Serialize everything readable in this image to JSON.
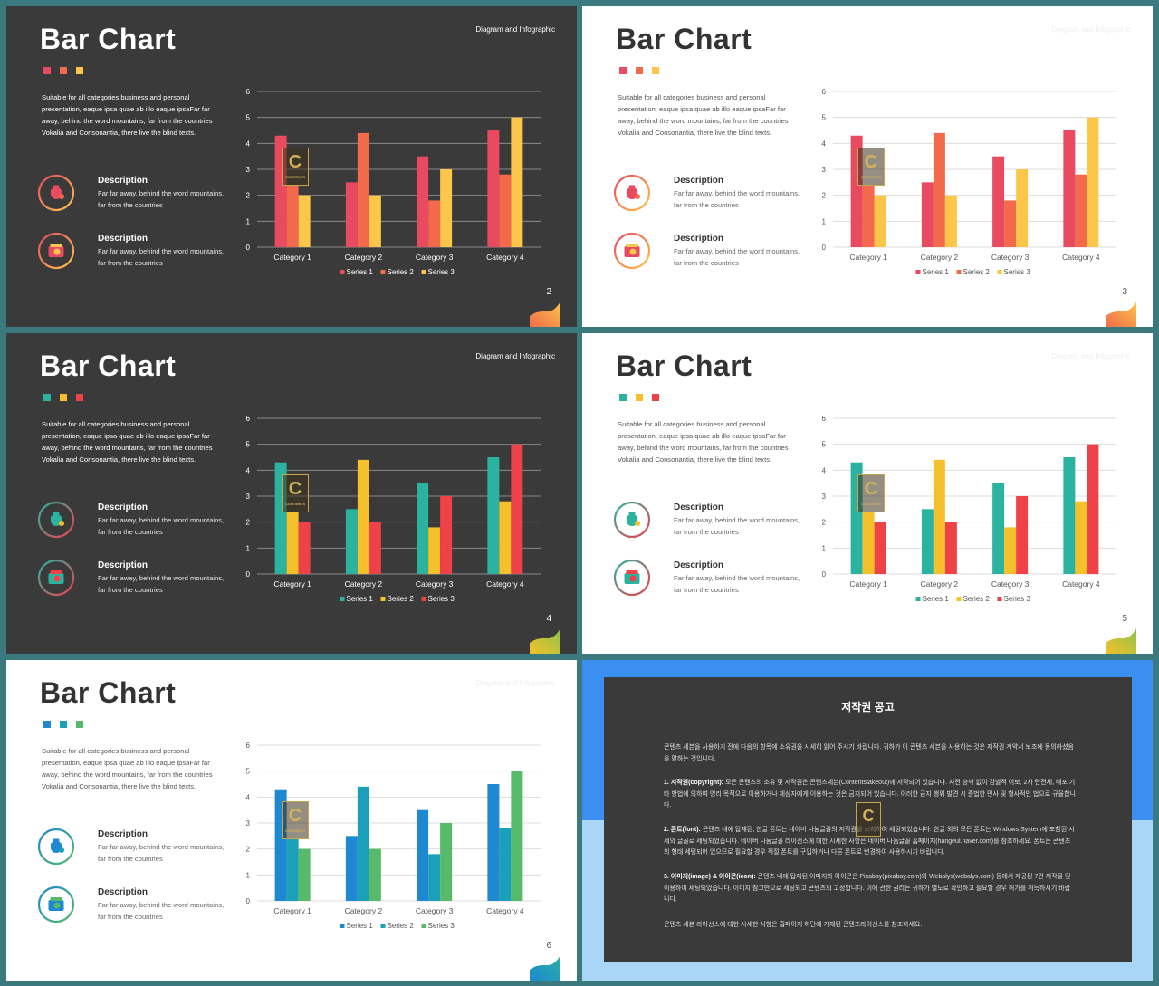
{
  "slides": [
    {
      "theme": "dark",
      "title": "Bar Chart",
      "corner_label": "Diagram and Infographic",
      "body_text": "Suitable for all categories business and personal presentation, eaque ipsa quae ab illo eaque ipsaFar far away, behind the word mountains, far from the countries Vokalia and Consonantia, there live the blind texts.",
      "descriptions": [
        {
          "title": "Description",
          "text": "Far far away, behind the word mountains, far from the countries",
          "icon": "money-bag-icon"
        },
        {
          "title": "Description",
          "text": "Far far away, behind the word mountains, far from the countries",
          "icon": "wallet-icon"
        }
      ],
      "dot_colors": [
        "#e84a5f",
        "#f26a4b",
        "#fcc64a"
      ],
      "series_colors": [
        "#e84a5f",
        "#f26a4b",
        "#fcc64a"
      ],
      "page_number": "2",
      "wave_colors": [
        "#f26a4b",
        "#fcc64a"
      ],
      "stamp_letter": "C",
      "stamp_text": "CONTENTS"
    },
    {
      "theme": "light",
      "title": "Bar Chart",
      "corner_label": "Diagram and Infographic",
      "body_text": "Suitable for all categories business and personal presentation, eaque ipsa quae ab illo eaque ipsaFar far away, behind the word mountains, far from the countries Vokalia and Consonantia, there live the blind texts.",
      "descriptions": [
        {
          "title": "Description",
          "text": "Far far away, behind the word mountains, far from the countries",
          "icon": "money-bag-icon"
        },
        {
          "title": "Description",
          "text": "Far far away, behind the word mountains, far from the countries",
          "icon": "wallet-icon"
        }
      ],
      "dot_colors": [
        "#e84a5f",
        "#f26a4b",
        "#fcc64a"
      ],
      "series_colors": [
        "#e84a5f",
        "#f26a4b",
        "#fcc64a"
      ],
      "page_number": "3",
      "wave_colors": [
        "#f26a4b",
        "#fcc64a"
      ],
      "stamp_letter": "C",
      "stamp_text": "CONTENTS"
    },
    {
      "theme": "dark",
      "title": "Bar Chart",
      "corner_label": "Diagram and Infographic",
      "body_text": "Suitable for all categories business and personal presentation, eaque ipsa quae ab illo eaque ipsaFar far away, behind the word mountains, far from the countries Vokalia and Consonantia, there live the blind texts.",
      "descriptions": [
        {
          "title": "Description",
          "text": "Far far away, behind the word mountains, far from the countries",
          "icon": "money-bag-icon"
        },
        {
          "title": "Description",
          "text": "Far far away, behind the word mountains, far from the countries",
          "icon": "wallet-icon"
        }
      ],
      "dot_colors": [
        "#2bb3a0",
        "#f5c02a",
        "#ee4249"
      ],
      "series_colors": [
        "#2bb3a0",
        "#f5c02a",
        "#ee4249"
      ],
      "page_number": "4",
      "wave_colors": [
        "#f5c02a",
        "#8bc34a"
      ],
      "stamp_letter": "C",
      "stamp_text": "CONTENTS"
    },
    {
      "theme": "light",
      "title": "Bar Chart",
      "corner_label": "Diagram and Infographic",
      "body_text": "Suitable for all categories business and personal presentation, eaque ipsa quae ab illo eaque ipsaFar far away, behind the word mountains, far from the countries Vokalia and Consonantia, there live the blind texts.",
      "descriptions": [
        {
          "title": "Description",
          "text": "Far far away, behind the word mountains, far from the countries",
          "icon": "money-bag-icon"
        },
        {
          "title": "Description",
          "text": "Far far away, behind the word mountains, far from the countries",
          "icon": "wallet-icon"
        }
      ],
      "dot_colors": [
        "#2bb3a0",
        "#f5c02a",
        "#ee4249"
      ],
      "series_colors": [
        "#2bb3a0",
        "#f5c02a",
        "#ee4249"
      ],
      "page_number": "5",
      "wave_colors": [
        "#f5c02a",
        "#8bc34a"
      ],
      "stamp_letter": "C",
      "stamp_text": "CONTENTS"
    },
    {
      "theme": "light",
      "title": "Bar Chart",
      "corner_label": "Diagram and Infographic",
      "body_text": "Suitable for all categories business and personal presentation, eaque ipsa quae ab illo eaque ipsaFar far away, behind the word mountains, far from the countries Vokalia and Consonantia, there live the blind texts.",
      "descriptions": [
        {
          "title": "Description",
          "text": "Far far away, behind the word mountains, far from the countries",
          "icon": "money-bag-icon"
        },
        {
          "title": "Description",
          "text": "Far far away, behind the word mountains, far from the countries",
          "icon": "wallet-icon"
        }
      ],
      "dot_colors": [
        "#1e88d0",
        "#1aa0b8",
        "#57b96a"
      ],
      "series_colors": [
        "#1e88d0",
        "#1aa0b8",
        "#57b96a"
      ],
      "page_number": "6",
      "wave_colors": [
        "#1e88d0",
        "#2bb3a0"
      ],
      "stamp_letter": "C",
      "stamp_text": "CONTENTS"
    }
  ],
  "chart_data": [
    {
      "type": "bar",
      "categories": [
        "Category 1",
        "Category 2",
        "Category 3",
        "Category 4"
      ],
      "series": [
        {
          "name": "Series 1",
          "values": [
            4.3,
            2.5,
            3.5,
            4.5
          ]
        },
        {
          "name": "Series 2",
          "values": [
            2.4,
            4.4,
            1.8,
            2.8
          ]
        },
        {
          "name": "Series 3",
          "values": [
            2,
            2,
            3,
            5
          ]
        }
      ],
      "ylim": [
        0,
        6
      ],
      "yticks": [
        "0",
        "1",
        "2",
        "3",
        "4",
        "5",
        "6"
      ],
      "legend": "bottom"
    },
    {
      "type": "bar",
      "categories": [
        "Category 1",
        "Category 2",
        "Category 3",
        "Category 4"
      ],
      "series": [
        {
          "name": "Series 1",
          "values": [
            4.3,
            2.5,
            3.5,
            4.5
          ]
        },
        {
          "name": "Series 2",
          "values": [
            2.4,
            4.4,
            1.8,
            2.8
          ]
        },
        {
          "name": "Series 3",
          "values": [
            2,
            2,
            3,
            5
          ]
        }
      ],
      "ylim": [
        0,
        6
      ],
      "yticks": [
        "0",
        "1",
        "2",
        "3",
        "4",
        "5",
        "6"
      ],
      "legend": "bottom"
    },
    {
      "type": "bar",
      "categories": [
        "Category 1",
        "Category 2",
        "Category 3",
        "Category 4"
      ],
      "series": [
        {
          "name": "Series 1",
          "values": [
            4.3,
            2.5,
            3.5,
            4.5
          ]
        },
        {
          "name": "Series 2",
          "values": [
            2.4,
            4.4,
            1.8,
            2.8
          ]
        },
        {
          "name": "Series 3",
          "values": [
            2,
            2,
            3,
            5
          ]
        }
      ],
      "ylim": [
        0,
        6
      ],
      "yticks": [
        "0",
        "1",
        "2",
        "3",
        "4",
        "5",
        "6"
      ],
      "legend": "bottom"
    },
    {
      "type": "bar",
      "categories": [
        "Category 1",
        "Category 2",
        "Category 3",
        "Category 4"
      ],
      "series": [
        {
          "name": "Series 1",
          "values": [
            4.3,
            2.5,
            3.5,
            4.5
          ]
        },
        {
          "name": "Series 2",
          "values": [
            2.4,
            4.4,
            1.8,
            2.8
          ]
        },
        {
          "name": "Series 3",
          "values": [
            2,
            2,
            3,
            5
          ]
        }
      ],
      "ylim": [
        0,
        6
      ],
      "yticks": [
        "0",
        "1",
        "2",
        "3",
        "4",
        "5",
        "6"
      ],
      "legend": "bottom"
    },
    {
      "type": "bar",
      "categories": [
        "Category 1",
        "Category 2",
        "Category 3",
        "Category 4"
      ],
      "series": [
        {
          "name": "Series 1",
          "values": [
            4.3,
            2.5,
            3.5,
            4.5
          ]
        },
        {
          "name": "Series 2",
          "values": [
            2.4,
            4.4,
            1.8,
            2.8
          ]
        },
        {
          "name": "Series 3",
          "values": [
            2,
            2,
            3,
            5
          ]
        }
      ],
      "ylim": [
        0,
        6
      ],
      "yticks": [
        "0",
        "1",
        "2",
        "3",
        "4",
        "5",
        "6"
      ],
      "legend": "bottom"
    }
  ],
  "copyright": {
    "title": "저작권 공고",
    "intro": "콘텐츠 세븐을 사용하기 전에 다음의 항목에 소유권을 시세히 읽어 주시기 바랍니다. 귀하가 이 콘텐츠 세븐을 사용하는 것은 저작권 계약서 보조에 동의하셨음을 말하는 것입니다.",
    "items": [
      {
        "label": "1. 저작권(copyright):",
        "text": "모든 콘텐츠의 소유 및 저작권은 콘텐츠세븐(Contentstakeout)에 저작되어 있습니다. 사전 승낙 없이 감별적 이보, 2차 탄전세, 배포 기타 방법에 의하여 영리 목적으로 이용하거나 제삼자에게 이용하는 것은 금지되어 있습니다. 이러한 금지 행위 발견 시 준법한 민사 및 형사적인 법으로 규율합니다."
      },
      {
        "label": "2. 폰트(font):",
        "text": "콘텐츠 내에 탑재된, 한글 폰트는 네이버 나눔글꼴의 저작권을 소지하여 세팅되었습니다. 한글 외의 모든 폰트는 Windows System에 포함된 시세의 글꼴로 세팅되었습니다. 네이버 나눔글꼴 라이선스에 대한 시세한 사항은 네이버 나눔글꼴 홈페이지(hangeul.naver.com)를 참조하세요. 폰트는 콘텐츠의 형태 세팅되어 있으므로 필요할 경우 적절 폰트를 구입하거나 다른 폰트로 변경하여 사용하시기 바랍니다."
      },
      {
        "label": "3. 이미지(image) & 아이콘(icon):",
        "text": "콘텐츠 내에 탑재된 이미지와 아이콘은 Pixabay(pixabay.com)와 Webalys(webalys.com) 등에서 제공된 7건 저작물 및 이용하여 세팅되었습니다. 이미지 참고만으로 세팅되고 콘텐츠의 고정합니다. 이에 관한 권리는 귀하가 별도로 확인하고 필요할 경우 허가를 취득하시기 바랍니다."
      }
    ],
    "footer": "콘텐츠 세븐 라이선스에 대한 시세한 사항은 홈페이지 하단에 기재된 콘텐츠라이선스를 참조하세요.",
    "stamp_letter": "C",
    "colors": {
      "top": "#3b8ff0",
      "bottom": "#a9d6f7",
      "panel": "#3a3a3a"
    }
  }
}
